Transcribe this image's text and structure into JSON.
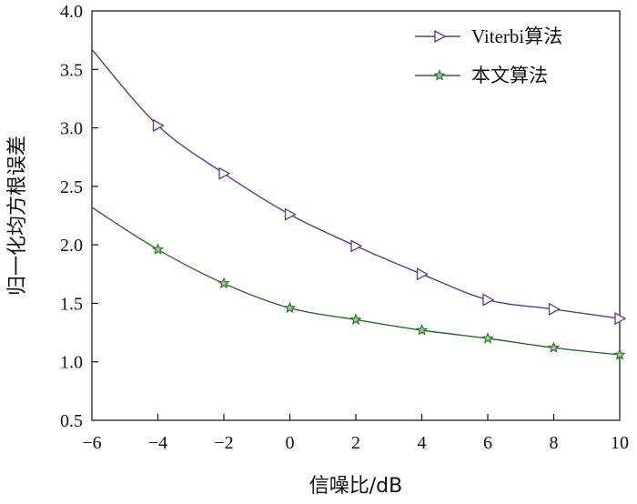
{
  "chart_data": {
    "type": "line",
    "title": "",
    "xlabel": "信噪比/dB",
    "ylabel": "归一化均方根误差",
    "xlim": [
      -6,
      10
    ],
    "ylim": [
      0.5,
      4.0
    ],
    "x_ticks": [
      "−6",
      "−4",
      "−2",
      "0",
      "2",
      "4",
      "6",
      "8",
      "10"
    ],
    "y_ticks": [
      "0.5",
      "1.0",
      "1.5",
      "2.0",
      "2.5",
      "3.0",
      "3.5",
      "4.0"
    ],
    "grid": false,
    "legend_position": "top-right",
    "series": [
      {
        "name": "Viterbi算法",
        "color": "#5b3a8c",
        "marker": "triangle-right",
        "x": [
          -6,
          -4,
          -2,
          0,
          2,
          4,
          6,
          8,
          10
        ],
        "y": [
          3.67,
          3.02,
          2.61,
          2.26,
          1.99,
          1.75,
          1.53,
          1.45,
          1.37
        ]
      },
      {
        "name": "本文算法",
        "color": "#2e6b2e",
        "marker": "star",
        "x": [
          -6,
          -4,
          -2,
          0,
          2,
          4,
          6,
          8,
          10
        ],
        "y": [
          2.32,
          1.96,
          1.67,
          1.46,
          1.36,
          1.27,
          1.2,
          1.12,
          1.06
        ]
      }
    ]
  }
}
